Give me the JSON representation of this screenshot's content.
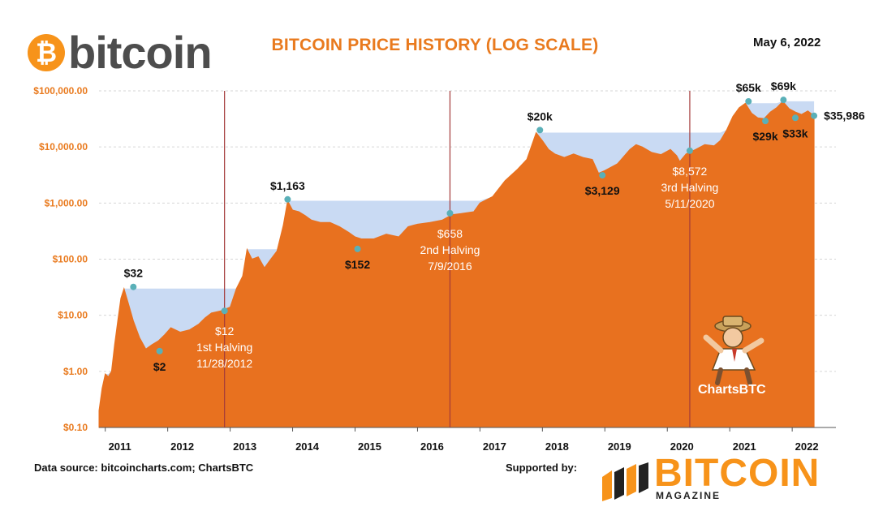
{
  "header": {
    "logo_symbol": "₿",
    "logo_text": "bitcoin",
    "title": "BITCOIN PRICE HISTORY (LOG SCALE)",
    "date": "May 6, 2022"
  },
  "footer": {
    "source": "Data source:  bitcoincharts.com; ChartsBTC",
    "supported": "Supported by:",
    "sponsor_word": "BITCOIN",
    "sponsor_sub": "MAGAZINE",
    "mascot_text": "ChartsBTC"
  },
  "colors": {
    "area": "#e8711f",
    "drawdown": "#c9daf3",
    "halving_line": "#a33a3a",
    "point": "#5ab0b8",
    "axis_label": "#e97a1e",
    "brand": "#f7931a"
  },
  "chart_data": {
    "type": "area",
    "title": "BITCOIN PRICE HISTORY (LOG SCALE)",
    "yscale": "log",
    "ylim": [
      0.1,
      100000
    ],
    "xlim": [
      2010.9,
      2022.7
    ],
    "yticks": [
      {
        "value": 0.1,
        "label": "$0.10"
      },
      {
        "value": 1,
        "label": "$1.00"
      },
      {
        "value": 10,
        "label": "$10.00"
      },
      {
        "value": 100,
        "label": "$100.00"
      },
      {
        "value": 1000,
        "label": "$1,000.00"
      },
      {
        "value": 10000,
        "label": "$10,000.00"
      },
      {
        "value": 100000,
        "label": "$100,000.00"
      }
    ],
    "xticks": [
      {
        "value": 2011.0,
        "label": "2011"
      },
      {
        "value": 2012.0,
        "label": "2012"
      },
      {
        "value": 2013.0,
        "label": "2013"
      },
      {
        "value": 2014.0,
        "label": "2014"
      },
      {
        "value": 2015.0,
        "label": "2015"
      },
      {
        "value": 2016.0,
        "label": "2016"
      },
      {
        "value": 2017.0,
        "label": "2017"
      },
      {
        "value": 2018.0,
        "label": "2018"
      },
      {
        "value": 2019.0,
        "label": "2019"
      },
      {
        "value": 2020.0,
        "label": "2020"
      },
      {
        "value": 2021.0,
        "label": "2021"
      },
      {
        "value": 2022.0,
        "label": "2022"
      }
    ],
    "grid": "horizontal",
    "series": [
      {
        "x": [
          2010.9,
          2010.95,
          2011.0,
          2011.05,
          2011.1,
          2011.15,
          2011.2,
          2011.25,
          2011.3,
          2011.38,
          2011.45,
          2011.55,
          2011.65,
          2011.75,
          2011.85,
          2011.95,
          2012.05,
          2012.2,
          2012.35,
          2012.5,
          2012.6,
          2012.7,
          2012.85,
          2013.0,
          2013.1,
          2013.2,
          2013.27,
          2013.35,
          2013.45,
          2013.55,
          2013.65,
          2013.75,
          2013.85,
          2013.92,
          2014.0,
          2014.1,
          2014.2,
          2014.3,
          2014.45,
          2014.6,
          2014.75,
          2014.9,
          2015.0,
          2015.1,
          2015.3,
          2015.5,
          2015.7,
          2015.85,
          2016.0,
          2016.2,
          2016.4,
          2016.55,
          2016.7,
          2016.9,
          2017.0,
          2017.2,
          2017.4,
          2017.6,
          2017.75,
          2017.9,
          2018.0,
          2018.1,
          2018.2,
          2018.35,
          2018.5,
          2018.65,
          2018.8,
          2018.9,
          2019.0,
          2019.2,
          2019.4,
          2019.5,
          2019.6,
          2019.75,
          2019.9,
          2020.05,
          2020.15,
          2020.2,
          2020.3,
          2020.45,
          2020.6,
          2020.75,
          2020.85,
          2020.95,
          2021.05,
          2021.15,
          2021.25,
          2021.35,
          2021.45,
          2021.55,
          2021.65,
          2021.75,
          2021.85,
          2021.95,
          2022.05,
          2022.15,
          2022.25,
          2022.35
        ],
        "y": [
          0.2,
          0.5,
          0.9,
          0.8,
          1.0,
          3,
          8,
          20,
          30,
          15,
          8,
          4,
          2.5,
          3,
          3.5,
          4.5,
          6,
          5,
          5.5,
          7,
          9,
          11,
          12,
          14,
          30,
          50,
          150,
          100,
          110,
          70,
          100,
          140,
          400,
          1100,
          750,
          700,
          600,
          500,
          450,
          450,
          380,
          300,
          250,
          230,
          230,
          280,
          250,
          380,
          420,
          450,
          500,
          620,
          650,
          700,
          1000,
          1300,
          2500,
          4000,
          6000,
          18000,
          13000,
          9000,
          7500,
          6500,
          7500,
          6500,
          6000,
          3400,
          3800,
          5000,
          9000,
          11000,
          10000,
          8000,
          7300,
          9000,
          7000,
          5500,
          7500,
          9000,
          11000,
          10500,
          13000,
          20000,
          35000,
          50000,
          60000,
          40000,
          33000,
          32000,
          42000,
          50000,
          65000,
          48000,
          42000,
          38000,
          44000,
          36000
        ]
      }
    ],
    "halvings": [
      {
        "x": 2012.91,
        "y": 12,
        "value_label": "$12",
        "name": "1st Halving",
        "date": "11/28/2012"
      },
      {
        "x": 2016.52,
        "y": 658,
        "value_label": "$658",
        "name": "2nd Halving",
        "date": "7/9/2016"
      },
      {
        "x": 2020.36,
        "y": 8572,
        "value_label": "$8,572",
        "name": "3rd Halving",
        "date": "5/11/2020"
      }
    ],
    "annotations": [
      {
        "x": 2011.45,
        "y": 32,
        "label": "$32",
        "pos": "above"
      },
      {
        "x": 2011.87,
        "y": 2.3,
        "label": "$2",
        "pos": "below"
      },
      {
        "x": 2013.92,
        "y": 1163,
        "label": "$1,163",
        "pos": "above"
      },
      {
        "x": 2015.04,
        "y": 152,
        "label": "$152",
        "pos": "below"
      },
      {
        "x": 2017.96,
        "y": 20000,
        "label": "$20k",
        "pos": "above"
      },
      {
        "x": 2018.96,
        "y": 3129,
        "label": "$3,129",
        "pos": "below"
      },
      {
        "x": 2021.3,
        "y": 65000,
        "label": "$65k",
        "pos": "above"
      },
      {
        "x": 2021.57,
        "y": 29000,
        "label": "$29k",
        "pos": "below"
      },
      {
        "x": 2021.86,
        "y": 69000,
        "label": "$69k",
        "pos": "above"
      },
      {
        "x": 2022.05,
        "y": 33000,
        "label": "$33k",
        "pos": "below"
      },
      {
        "x": 2022.35,
        "y": 35986,
        "label": "$35,986",
        "pos": "right"
      }
    ]
  }
}
